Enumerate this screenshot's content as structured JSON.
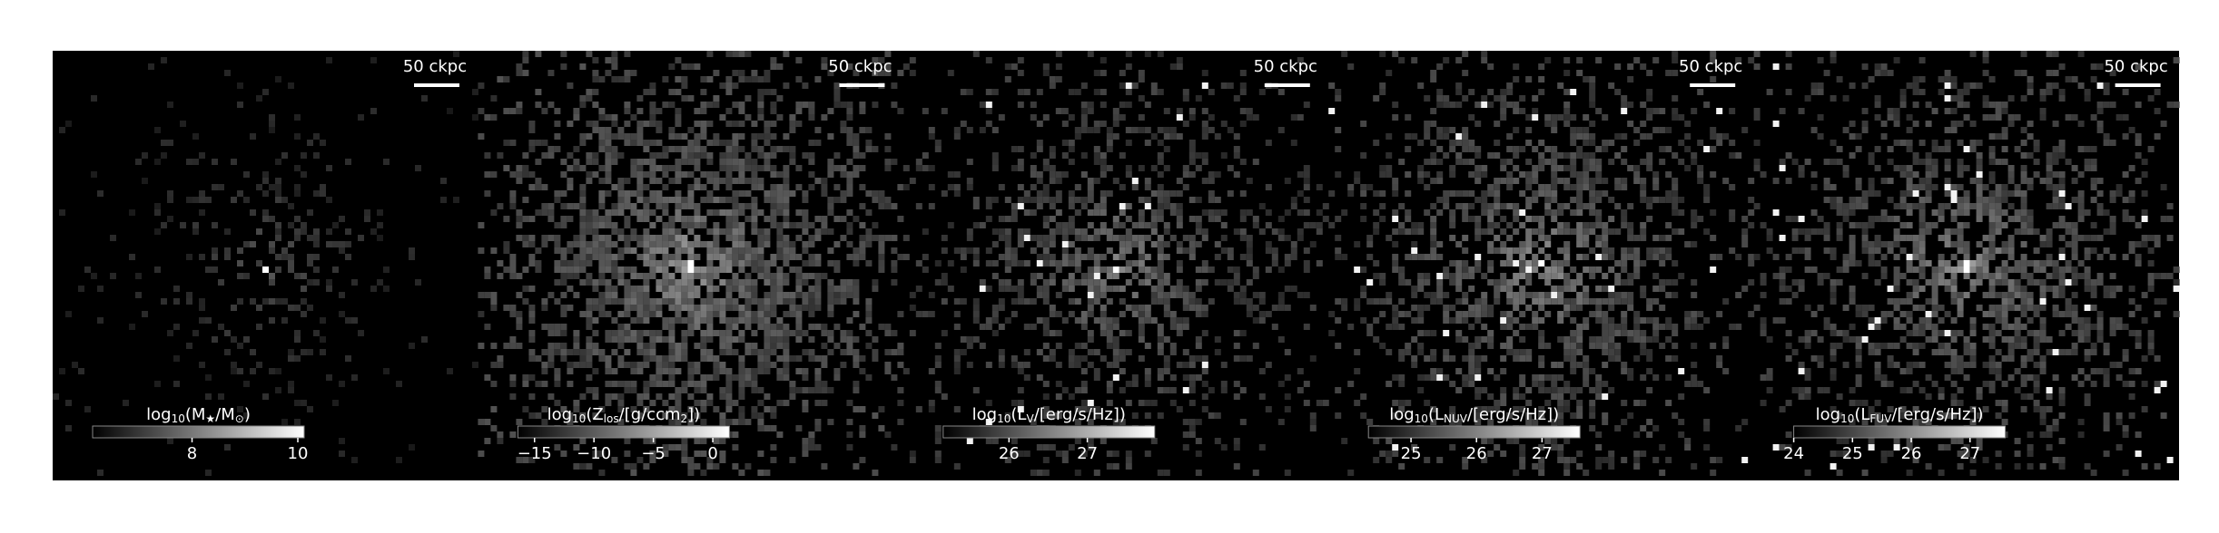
{
  "panels": [
    {
      "scale_label": "50 ckpc",
      "colorbar": {
        "label": [
          "log",
          "10",
          "(M",
          "★",
          "/M",
          "⊙",
          ")"
        ],
        "lim": [
          6.12,
          10.12
        ],
        "ticks": [
          8,
          10
        ]
      }
    },
    {
      "scale_label": "50 ckpc",
      "colorbar": {
        "label": [
          "log",
          "10",
          "(Z",
          "los",
          "/[g/ccm",
          "2",
          "])"
        ],
        "lim": [
          -16.4,
          1.4
        ],
        "ticks": [
          {
            "value": -15,
            "label": "−15"
          },
          {
            "value": -10,
            "label": "−10"
          },
          {
            "value": -5,
            "label": "−5"
          },
          0
        ]
      }
    },
    {
      "scale_label": "50 ckpc",
      "colorbar": {
        "label": [
          "log",
          "10",
          "(L",
          "V",
          "/[erg/s/Hz])"
        ],
        "lim": [
          25.16,
          27.86
        ],
        "ticks": [
          26,
          27
        ]
      }
    },
    {
      "scale_label": "50 ckpc",
      "colorbar": {
        "label": [
          "log",
          "10",
          "(L",
          "NUV",
          "/[erg/s/Hz])"
        ],
        "lim": [
          24.35,
          27.58
        ],
        "ticks": [
          25,
          26,
          27
        ]
      }
    },
    {
      "scale_label": "50 ckpc",
      "colorbar": {
        "label": [
          "log",
          "10",
          "(L",
          "FUV",
          "/[erg/s/Hz])"
        ],
        "lim": [
          24.0,
          27.6
        ],
        "ticks": [
          24,
          25,
          26,
          27
        ]
      }
    }
  ]
}
